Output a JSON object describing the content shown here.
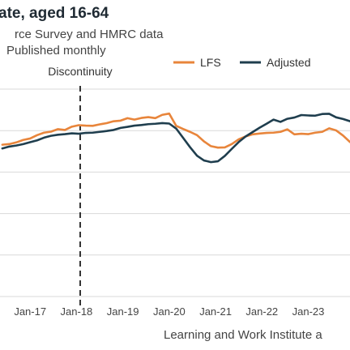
{
  "chart_data": {
    "type": "line",
    "title": "ate, aged 16-64",
    "subtitle_lines": [
      "rce Survey and HMRC data",
      "Published monthly"
    ],
    "xlabel": "",
    "ylabel": "",
    "x_tick_labels": [
      "Jan-17",
      "Jan-18",
      "Jan-19",
      "Jan-20",
      "Jan-21",
      "Jan-22",
      "Jan-23"
    ],
    "x_range": [
      2016.35,
      2023.9
    ],
    "ylim": [
      0,
      100
    ],
    "grid": true,
    "grid_axis": "y",
    "legend_position": "top-right",
    "annotation": {
      "label": "Discontinuity",
      "x": 2018.08
    },
    "source": "Learning and Work Institute a",
    "x": [
      2016.4,
      2016.55,
      2016.7,
      2016.85,
      2017.0,
      2017.15,
      2017.3,
      2017.45,
      2017.6,
      2017.75,
      2017.9,
      2018.05,
      2018.2,
      2018.35,
      2018.5,
      2018.65,
      2018.8,
      2018.95,
      2019.1,
      2019.25,
      2019.4,
      2019.55,
      2019.7,
      2019.85,
      2020.0,
      2020.15,
      2020.3,
      2020.45,
      2020.6,
      2020.75,
      2020.9,
      2021.05,
      2021.2,
      2021.35,
      2021.5,
      2021.65,
      2021.8,
      2021.95,
      2022.1,
      2022.25,
      2022.4,
      2022.55,
      2022.7,
      2022.85,
      2023.0,
      2023.15,
      2023.3,
      2023.45,
      2023.6,
      2023.75,
      2023.9
    ],
    "series": [
      {
        "name": "LFS",
        "color": "#e8853b",
        "values": [
          73.2,
          73.5,
          74.3,
          75.5,
          76.2,
          77.8,
          79.0,
          79.5,
          80.7,
          80.3,
          81.9,
          82.6,
          82.4,
          82.3,
          83.0,
          83.6,
          84.5,
          84.8,
          86.0,
          85.3,
          86.1,
          86.5,
          86.0,
          87.6,
          88.2,
          82.3,
          80.8,
          79.4,
          77.8,
          74.8,
          72.5,
          71.8,
          71.9,
          73.5,
          75.8,
          77.2,
          78.2,
          78.6,
          78.9,
          79.0,
          79.4,
          80.6,
          78.2,
          78.5,
          78.3,
          79.0,
          79.4,
          81.1,
          80.1,
          77.6,
          74.5
        ]
      },
      {
        "name": "Adjusted",
        "color": "#1f3e4e",
        "values": [
          71.4,
          72.3,
          72.8,
          73.5,
          74.4,
          75.3,
          76.6,
          77.5,
          78.0,
          78.3,
          78.7,
          78.5,
          78.9,
          79.0,
          79.4,
          79.8,
          80.3,
          81.3,
          81.8,
          82.4,
          82.7,
          83.1,
          83.3,
          83.6,
          83.4,
          81.0,
          76.5,
          72.0,
          67.9,
          65.6,
          64.8,
          65.2,
          67.8,
          71.2,
          74.5,
          77.2,
          79.3,
          81.4,
          83.3,
          85.3,
          84.2,
          85.7,
          86.3,
          87.5,
          87.3,
          87.2,
          88.0,
          88.1,
          86.4,
          85.6,
          84.5
        ]
      }
    ]
  }
}
